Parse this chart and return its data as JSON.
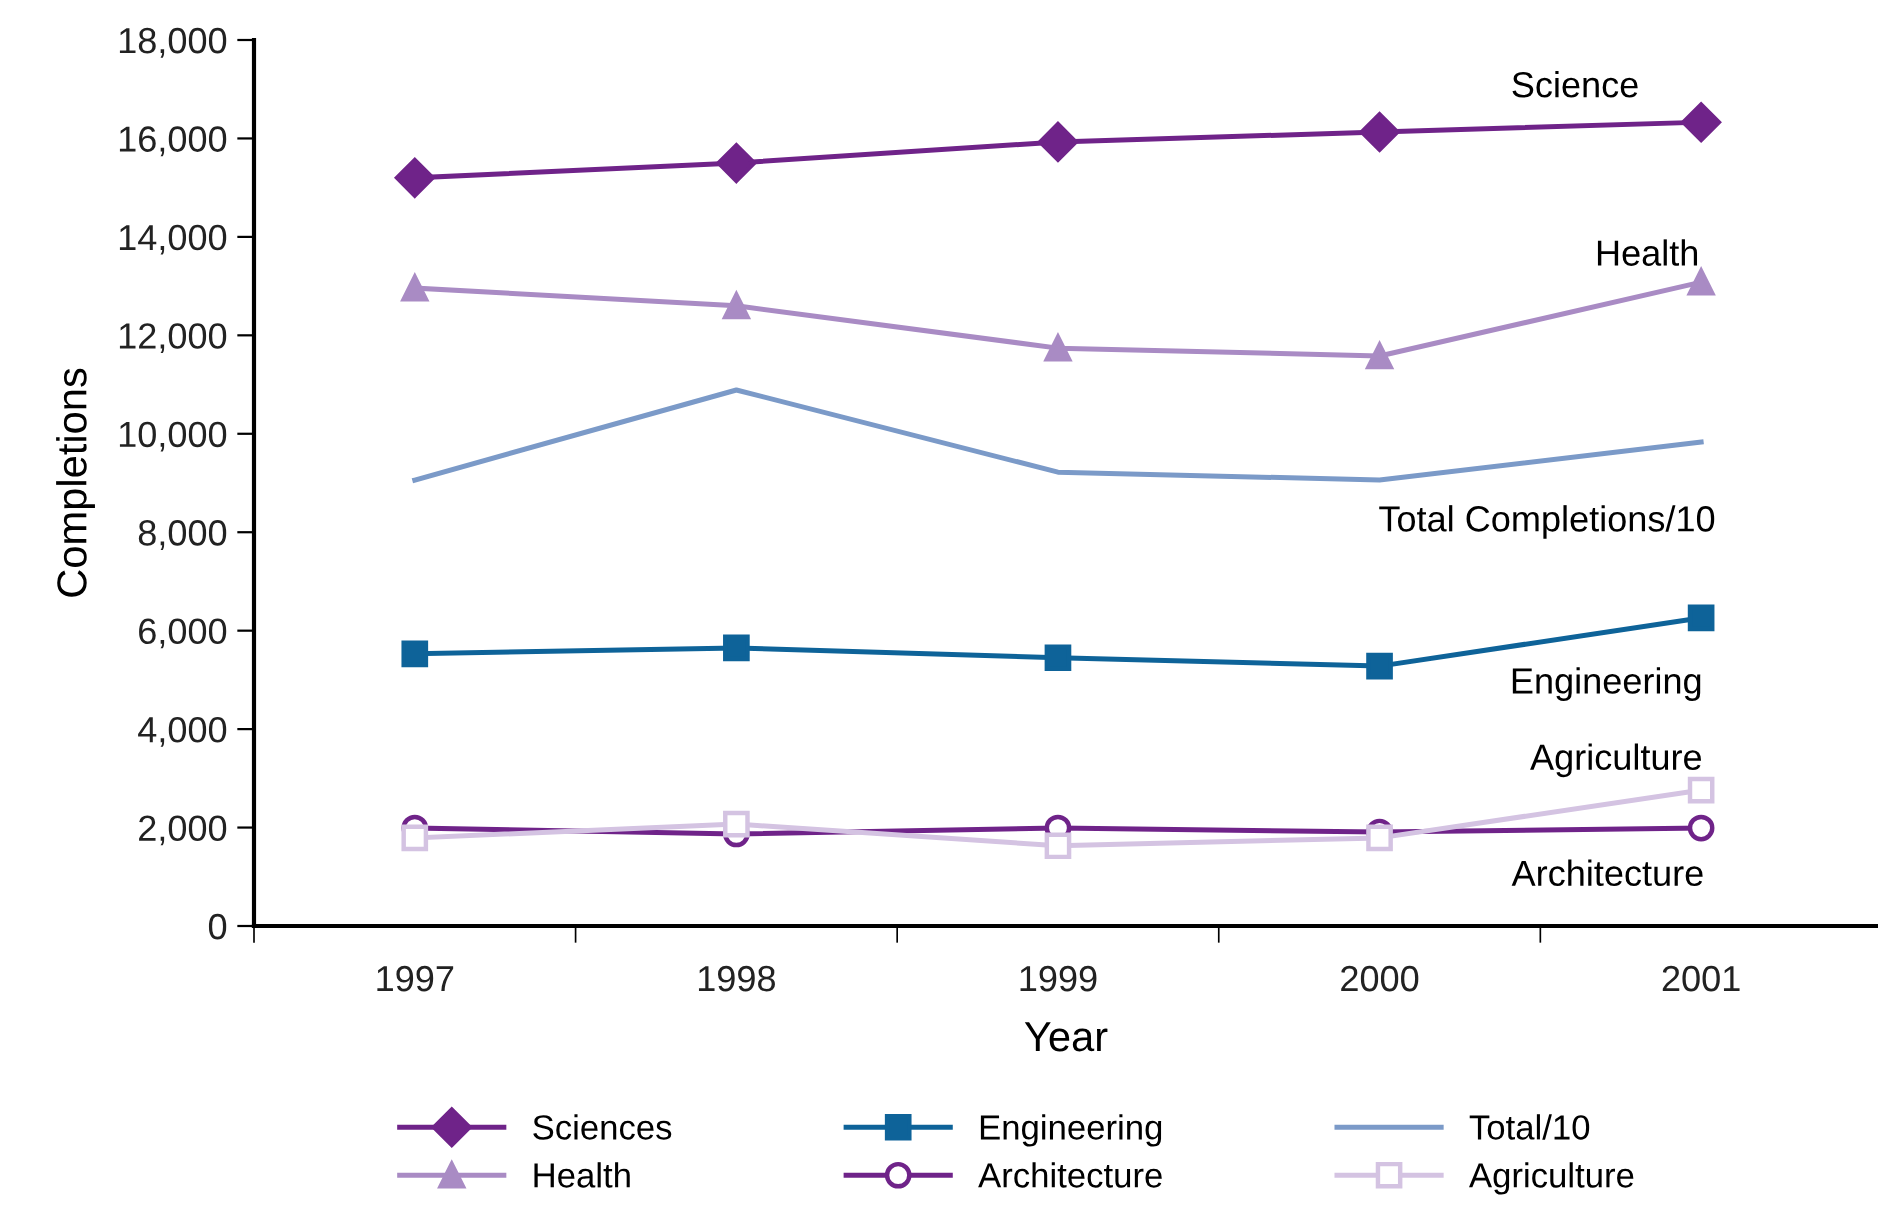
{
  "chart_data": {
    "type": "line",
    "xlabel": "Year",
    "ylabel": "Completions",
    "categories": [
      "1997",
      "1998",
      "1999",
      "2000",
      "2001"
    ],
    "ylim": [
      0,
      18000
    ],
    "yticks": [
      {
        "value": 0,
        "label": "0"
      },
      {
        "value": 2000,
        "label": "2,000"
      },
      {
        "value": 4000,
        "label": "4,000"
      },
      {
        "value": 6000,
        "label": "6,000"
      },
      {
        "value": 8000,
        "label": "8,000"
      },
      {
        "value": 10000,
        "label": "10,000"
      },
      {
        "value": 12000,
        "label": "12,000"
      },
      {
        "value": 14000,
        "label": "14,000"
      },
      {
        "value": 16000,
        "label": "16,000"
      },
      {
        "value": 18000,
        "label": "18,000"
      }
    ],
    "grid": false,
    "legend": "bottom",
    "line_style": "solid",
    "series": [
      {
        "name": "Sciences",
        "color": "#6f2389",
        "marker": "diamond",
        "values": [
          15200,
          15500,
          15930,
          16130,
          16330
        ]
      },
      {
        "name": "Engineering",
        "color": "#0e6399",
        "marker": "square",
        "values": [
          5530,
          5650,
          5450,
          5280,
          6260
        ]
      },
      {
        "name": "Total/10",
        "color": "#7b9ac8",
        "marker": "none",
        "values": [
          9060,
          10890,
          9220,
          9060,
          9830
        ]
      },
      {
        "name": "Health",
        "color": "#a98bc4",
        "marker": "triangle",
        "values": [
          12960,
          12600,
          11740,
          11580,
          13080
        ]
      },
      {
        "name": "Architecture",
        "color": "#6f2389",
        "marker": "circle",
        "values": [
          1990,
          1870,
          1990,
          1910,
          1990
        ]
      },
      {
        "name": "Agriculture",
        "color": "#d4c3e2",
        "marker": "square",
        "values": [
          1790,
          2070,
          1630,
          1790,
          2760
        ]
      }
    ],
    "annotations": [
      "Science",
      "Health",
      "Total Completions/10",
      "Engineering",
      "Agriculture",
      "Architecture"
    ]
  }
}
